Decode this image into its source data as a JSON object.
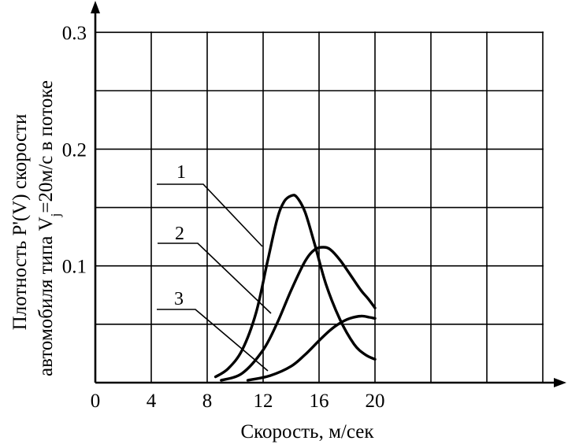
{
  "chart_data": {
    "type": "line",
    "title": "",
    "xlabel": "Скорость, м/сек",
    "ylabel_line1": "Плотность P'(V) скорости",
    "ylabel_line2_before": "автомобиля типа V",
    "ylabel_line2_sub": "j",
    "ylabel_line2_after": "=20м/с в потоке",
    "x_ticks": [
      "0",
      "4",
      "8",
      "12",
      "16",
      "20"
    ],
    "y_ticks": [
      "0.1",
      "0.2",
      "0.3"
    ],
    "xlim": [
      0,
      32
    ],
    "ylim": [
      0,
      0.3
    ],
    "grid": true,
    "grid_x_step": 4,
    "grid_y_step": 0.05,
    "series": [
      {
        "name": "1",
        "x": [
          8.6,
          9.5,
          10.5,
          11.5,
          12.3,
          13.0,
          13.5,
          14.0,
          14.4,
          15.0,
          15.7,
          16.5,
          17.5,
          18.5,
          19.3,
          20.0
        ],
        "y": [
          0.005,
          0.012,
          0.028,
          0.06,
          0.103,
          0.14,
          0.155,
          0.16,
          0.159,
          0.146,
          0.118,
          0.084,
          0.054,
          0.033,
          0.024,
          0.02
        ]
      },
      {
        "name": "2",
        "x": [
          9.0,
          10.5,
          12.0,
          13.0,
          14.0,
          15.0,
          15.7,
          16.3,
          16.8,
          17.5,
          18.2,
          19.0,
          19.5,
          20.0
        ],
        "y": [
          0.002,
          0.008,
          0.028,
          0.051,
          0.079,
          0.104,
          0.114,
          0.116,
          0.114,
          0.105,
          0.093,
          0.079,
          0.072,
          0.064
        ]
      },
      {
        "name": "3",
        "x": [
          10.9,
          12.5,
          14.0,
          15.0,
          16.0,
          16.8,
          17.5,
          18.2,
          19.0,
          19.6,
          20.0
        ],
        "y": [
          0.002,
          0.006,
          0.014,
          0.024,
          0.036,
          0.045,
          0.051,
          0.055,
          0.057,
          0.056,
          0.055
        ]
      }
    ],
    "colors": {
      "line": "#000000",
      "background": "#ffffff"
    }
  }
}
